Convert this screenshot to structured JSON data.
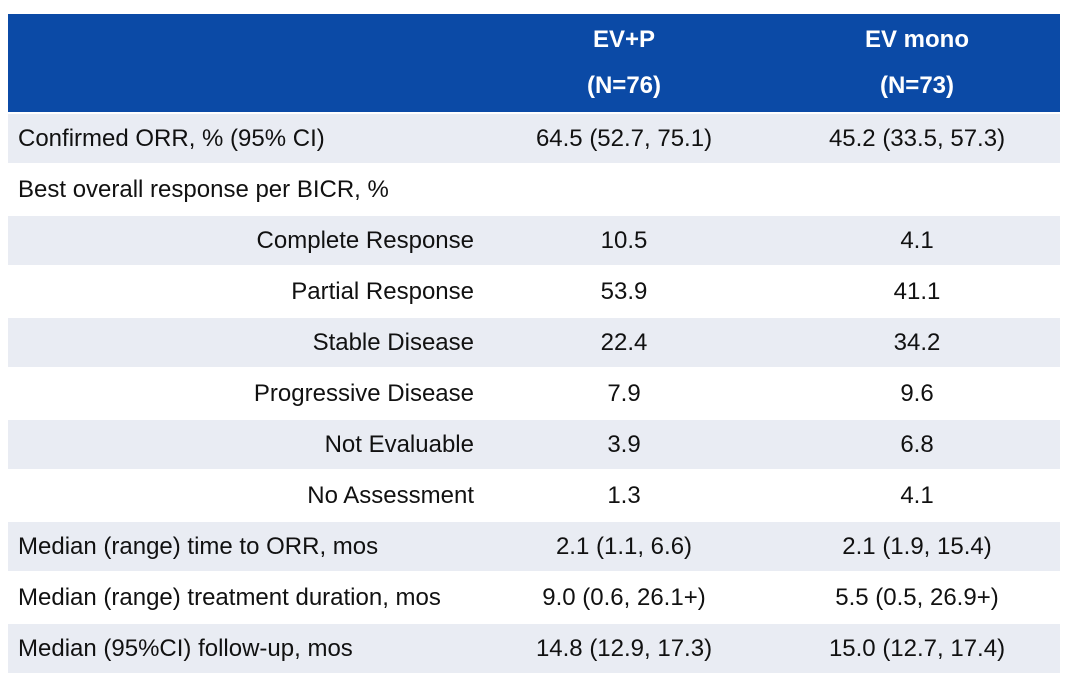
{
  "table": {
    "columns": [
      {
        "name": "",
        "subtitle": ""
      },
      {
        "name": "EV+P",
        "subtitle": "(N=76)"
      },
      {
        "name": "EV mono",
        "subtitle": "(N=73)"
      }
    ],
    "rows": [
      {
        "label": "Confirmed ORR, % (95% CI)",
        "indent": false,
        "shaded": true,
        "values": [
          "64.5 (52.7, 75.1)",
          "45.2 (33.5, 57.3)"
        ]
      },
      {
        "label": "Best overall response per BICR, %",
        "indent": false,
        "shaded": false,
        "values": [
          "",
          ""
        ]
      },
      {
        "label": "Complete Response",
        "indent": true,
        "shaded": true,
        "values": [
          "10.5",
          "4.1"
        ]
      },
      {
        "label": "Partial Response",
        "indent": true,
        "shaded": false,
        "values": [
          "53.9",
          "41.1"
        ]
      },
      {
        "label": "Stable Disease",
        "indent": true,
        "shaded": true,
        "values": [
          "22.4",
          "34.2"
        ]
      },
      {
        "label": "Progressive Disease",
        "indent": true,
        "shaded": false,
        "values": [
          "7.9",
          "9.6"
        ]
      },
      {
        "label": "Not Evaluable",
        "indent": true,
        "shaded": true,
        "values": [
          "3.9",
          "6.8"
        ]
      },
      {
        "label": "No Assessment",
        "indent": true,
        "shaded": false,
        "values": [
          "1.3",
          "4.1"
        ]
      },
      {
        "label": "Median (range) time to ORR, mos",
        "indent": false,
        "shaded": true,
        "values": [
          "2.1 (1.1, 6.6)",
          "2.1 (1.9, 15.4)"
        ]
      },
      {
        "label": "Median (range) treatment duration, mos",
        "indent": false,
        "shaded": false,
        "values": [
          "9.0 (0.6, 26.1+)",
          "5.5 (0.5, 26.9+)"
        ]
      },
      {
        "label": "Median (95%CI) follow-up, mos",
        "indent": false,
        "shaded": true,
        "values": [
          "14.8 (12.9, 17.3)",
          "15.0 (12.7, 17.4)"
        ]
      }
    ]
  },
  "colors": {
    "header_bg": "#0b4aa6",
    "header_text": "#ffffff",
    "shaded_row": "#e9ecf3"
  }
}
